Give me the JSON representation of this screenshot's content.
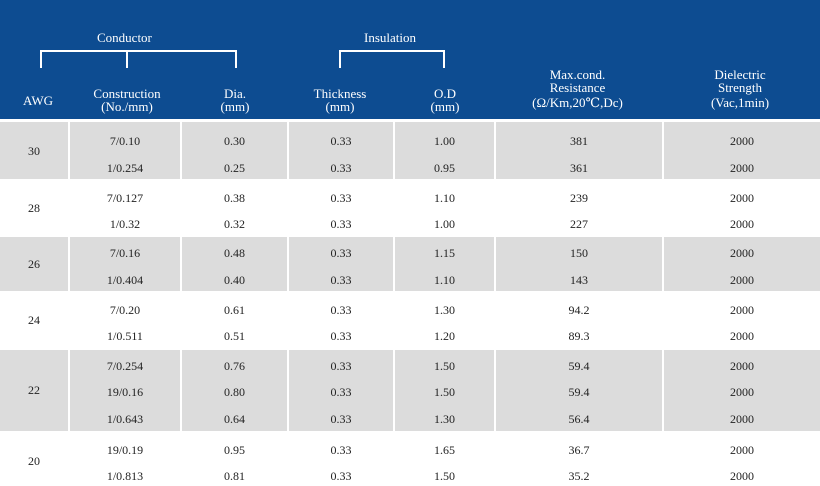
{
  "header": {
    "conductor": "Conductor",
    "insulation": "Insulation",
    "awg": "AWG",
    "construction_l1": "Construction",
    "construction_l2": "(No./mm)",
    "dia_l1": "Dia.",
    "dia_l2": "(mm)",
    "thickness_l1": "Thickness",
    "thickness_l2": "(mm)",
    "od_l1": "O.D",
    "od_l2": "(mm)",
    "resistance_l1": "Max.cond.",
    "resistance_l2": "Resistance",
    "resistance_l3": "(Ω/Km,20℃,Dc)",
    "dielectric_l1": "Dielectric",
    "dielectric_l2": "Strength",
    "dielectric_l3": "(Vac,1min)"
  },
  "groups": [
    {
      "awg": "30",
      "rows": [
        {
          "construction": "7/0.10",
          "dia": "0.30",
          "thickness": "0.33",
          "od": "1.00",
          "resistance": "381",
          "dielectric": "2000"
        },
        {
          "construction": "1/0.254",
          "dia": "0.25",
          "thickness": "0.33",
          "od": "0.95",
          "resistance": "361",
          "dielectric": "2000"
        }
      ]
    },
    {
      "awg": "28",
      "rows": [
        {
          "construction": "7/0.127",
          "dia": "0.38",
          "thickness": "0.33",
          "od": "1.10",
          "resistance": "239",
          "dielectric": "2000"
        },
        {
          "construction": "1/0.32",
          "dia": "0.32",
          "thickness": "0.33",
          "od": "1.00",
          "resistance": "227",
          "dielectric": "2000"
        }
      ]
    },
    {
      "awg": "26",
      "rows": [
        {
          "construction": "7/0.16",
          "dia": "0.48",
          "thickness": "0.33",
          "od": "1.15",
          "resistance": "150",
          "dielectric": "2000"
        },
        {
          "construction": "1/0.404",
          "dia": "0.40",
          "thickness": "0.33",
          "od": "1.10",
          "resistance": "143",
          "dielectric": "2000"
        }
      ]
    },
    {
      "awg": "24",
      "rows": [
        {
          "construction": "7/0.20",
          "dia": "0.61",
          "thickness": "0.33",
          "od": "1.30",
          "resistance": "94.2",
          "dielectric": "2000"
        },
        {
          "construction": "1/0.511",
          "dia": "0.51",
          "thickness": "0.33",
          "od": "1.20",
          "resistance": "89.3",
          "dielectric": "2000"
        }
      ]
    },
    {
      "awg": "22",
      "rows": [
        {
          "construction": "7/0.254",
          "dia": "0.76",
          "thickness": "0.33",
          "od": "1.50",
          "resistance": "59.4",
          "dielectric": "2000"
        },
        {
          "construction": "19/0.16",
          "dia": "0.80",
          "thickness": "0.33",
          "od": "1.50",
          "resistance": "59.4",
          "dielectric": "2000"
        },
        {
          "construction": "1/0.643",
          "dia": "0.64",
          "thickness": "0.33",
          "od": "1.30",
          "resistance": "56.4",
          "dielectric": "2000"
        }
      ]
    },
    {
      "awg": "20",
      "rows": [
        {
          "construction": "19/0.19",
          "dia": "0.95",
          "thickness": "0.33",
          "od": "1.65",
          "resistance": "36.7",
          "dielectric": "2000"
        },
        {
          "construction": "1/0.813",
          "dia": "0.81",
          "thickness": "0.33",
          "od": "1.50",
          "resistance": "35.2",
          "dielectric": "2000"
        }
      ]
    }
  ],
  "colors": {
    "header_bg": "#0d4c91",
    "row_shade": "#dcdcdc",
    "separator": "#ffffff"
  }
}
